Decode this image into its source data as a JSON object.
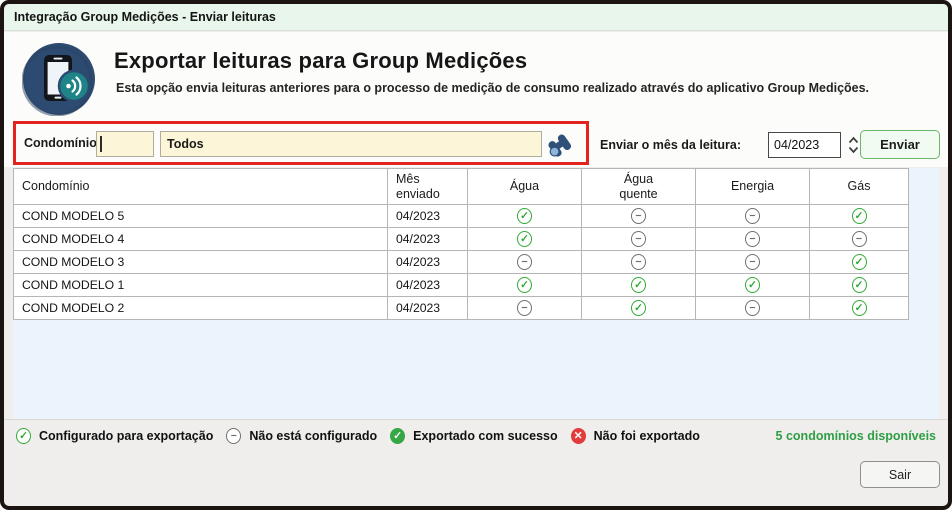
{
  "window": {
    "title": "Integração Group Medições - Enviar leituras"
  },
  "header": {
    "title": "Exportar leituras para Group Medições",
    "subtitle": "Esta opção envia leituras anteriores para o processo de medição de consumo realizado através do aplicativo Group Medições."
  },
  "filter": {
    "condo_label": "Condomínio:",
    "condo_code_value": "",
    "condo_name_value": "Todos",
    "month_label": "Enviar o mês da leitura:",
    "month_value": "04/2023",
    "send_button_label": "Enviar"
  },
  "table": {
    "columns": [
      {
        "label": "Condomínio",
        "align": "left"
      },
      {
        "label": "Mês\nenviado",
        "align": "left"
      },
      {
        "label": "Água",
        "align": "center"
      },
      {
        "label": "Água\nquente",
        "align": "center"
      },
      {
        "label": "Energia",
        "align": "center"
      },
      {
        "label": "Gás",
        "align": "center"
      }
    ],
    "rows": [
      {
        "name": "COND MODELO 5",
        "month": "04/2023",
        "agua": "check",
        "agua_quente": "minus",
        "energia": "minus",
        "gas": "check"
      },
      {
        "name": "COND MODELO 4",
        "month": "04/2023",
        "agua": "check",
        "agua_quente": "minus",
        "energia": "minus",
        "gas": "minus"
      },
      {
        "name": "COND MODELO 3",
        "month": "04/2023",
        "agua": "minus",
        "agua_quente": "minus",
        "energia": "minus",
        "gas": "check"
      },
      {
        "name": "COND MODELO 1",
        "month": "04/2023",
        "agua": "check",
        "agua_quente": "check",
        "energia": "check",
        "gas": "check"
      },
      {
        "name": "COND MODELO 2",
        "month": "04/2023",
        "agua": "minus",
        "agua_quente": "check",
        "energia": "minus",
        "gas": "check"
      }
    ]
  },
  "legend": {
    "items": [
      {
        "icon": "outline-check",
        "label": "Configurado para exportação"
      },
      {
        "icon": "outline-minus",
        "label": "Não está configurado"
      },
      {
        "icon": "filled-check",
        "label": "Exportado com sucesso"
      },
      {
        "icon": "filled-x",
        "label": "Não foi exportado"
      }
    ],
    "count_text": "5 condomínios disponíveis"
  },
  "footer": {
    "exit_button_label": "Sair"
  },
  "colors": {
    "highlight_red": "#e3231d",
    "status_green": "#2faa32",
    "status_gray": "#6f6f6f",
    "filled_green": "#35a845",
    "filled_red": "#e23b3b",
    "count_green": "#2f9e44",
    "input_cream": "#fdf5d7",
    "titlebar_green": "#e9f6eb",
    "icon_navy": "#2d4b71",
    "icon_teal": "#1e8488"
  }
}
